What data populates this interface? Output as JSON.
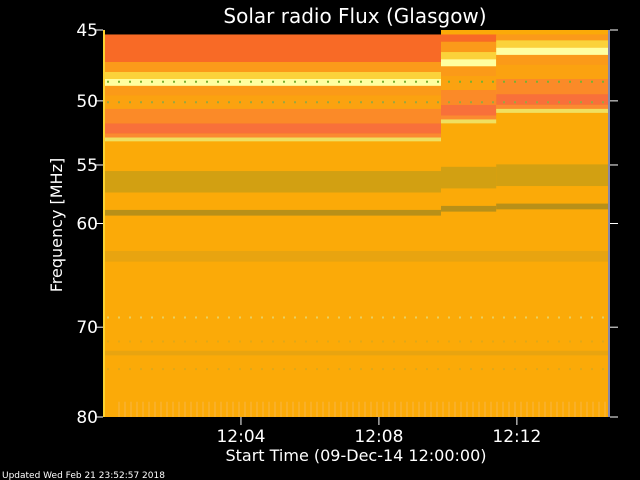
{
  "chart_data": {
    "type": "heatmap",
    "title": "Solar radio Flux (Glasgow)",
    "ylabel": "Frequency [MHz]",
    "xlabel": "Start Time (09-Dec-14 12:00:00)",
    "x_unit": "minutes after 12:00:00",
    "xlim": [
      0,
      14.7
    ],
    "ylim": [
      45,
      80
    ],
    "y_scale": "log",
    "y_direction": "increasing downward",
    "x_ticks": [
      {
        "value": 4,
        "label": "12:04"
      },
      {
        "value": 8,
        "label": "12:08"
      },
      {
        "value": 12,
        "label": "12:12"
      }
    ],
    "y_ticks": [
      {
        "value": 45,
        "label": "45"
      },
      {
        "value": 50,
        "label": "50"
      },
      {
        "value": 55,
        "label": "55"
      },
      {
        "value": 60,
        "label": "60"
      },
      {
        "value": 70,
        "label": "70"
      },
      {
        "value": 80,
        "label": "80"
      }
    ],
    "background_color": "#fbaa08",
    "bands": [
      {
        "freq_min": 45.3,
        "freq_max": 47.2,
        "color": "#f86a26"
      },
      {
        "freq_min": 47.2,
        "freq_max": 47.9,
        "color": "#fb9a1a"
      },
      {
        "freq_min": 47.9,
        "freq_max": 48.4,
        "color": "#fbd23a"
      },
      {
        "freq_min": 48.4,
        "freq_max": 48.9,
        "color": "#ffffa0"
      },
      {
        "freq_min": 48.9,
        "freq_max": 49.6,
        "color": "#fb9a18"
      },
      {
        "freq_min": 49.6,
        "freq_max": 50.6,
        "color": "#fba210"
      },
      {
        "freq_min": 50.6,
        "freq_max": 51.7,
        "color": "#fb8a28"
      },
      {
        "freq_min": 51.7,
        "freq_max": 52.5,
        "color": "#f8703a"
      },
      {
        "freq_min": 52.5,
        "freq_max": 52.8,
        "color": "#fb8a30"
      },
      {
        "freq_min": 52.8,
        "freq_max": 53.1,
        "color": "#f0e060"
      },
      {
        "freq_min": 55.5,
        "freq_max": 57.3,
        "color": "#d2a012"
      },
      {
        "freq_min": 58.8,
        "freq_max": 59.3,
        "color": "#b89018"
      },
      {
        "freq_min": 62.5,
        "freq_max": 63.5,
        "color": "#e8a410"
      },
      {
        "freq_min": 72.5,
        "freq_max": 73.0,
        "color": "#e8a410"
      }
    ],
    "upper_bands_late": [
      {
        "start": 9.8,
        "end": 11.4,
        "shift_mhz": -1.4
      },
      {
        "start": 11.4,
        "end": 14.7,
        "shift_mhz": -2.2
      }
    ],
    "interference_streaks": [
      {
        "freq": 48.6,
        "color": "#7ab030"
      },
      {
        "freq": 50.1,
        "color": "#9aa840"
      },
      {
        "freq": 69.0,
        "color": "#e8d060"
      },
      {
        "freq": 71.5,
        "color": "#e0a818"
      },
      {
        "freq": 74.5,
        "color": "#e0a818"
      }
    ],
    "left_edge_color": "#fbd230"
  },
  "footer": {
    "updated": "Updated Wed Feb 21 23:52:57 2018"
  }
}
